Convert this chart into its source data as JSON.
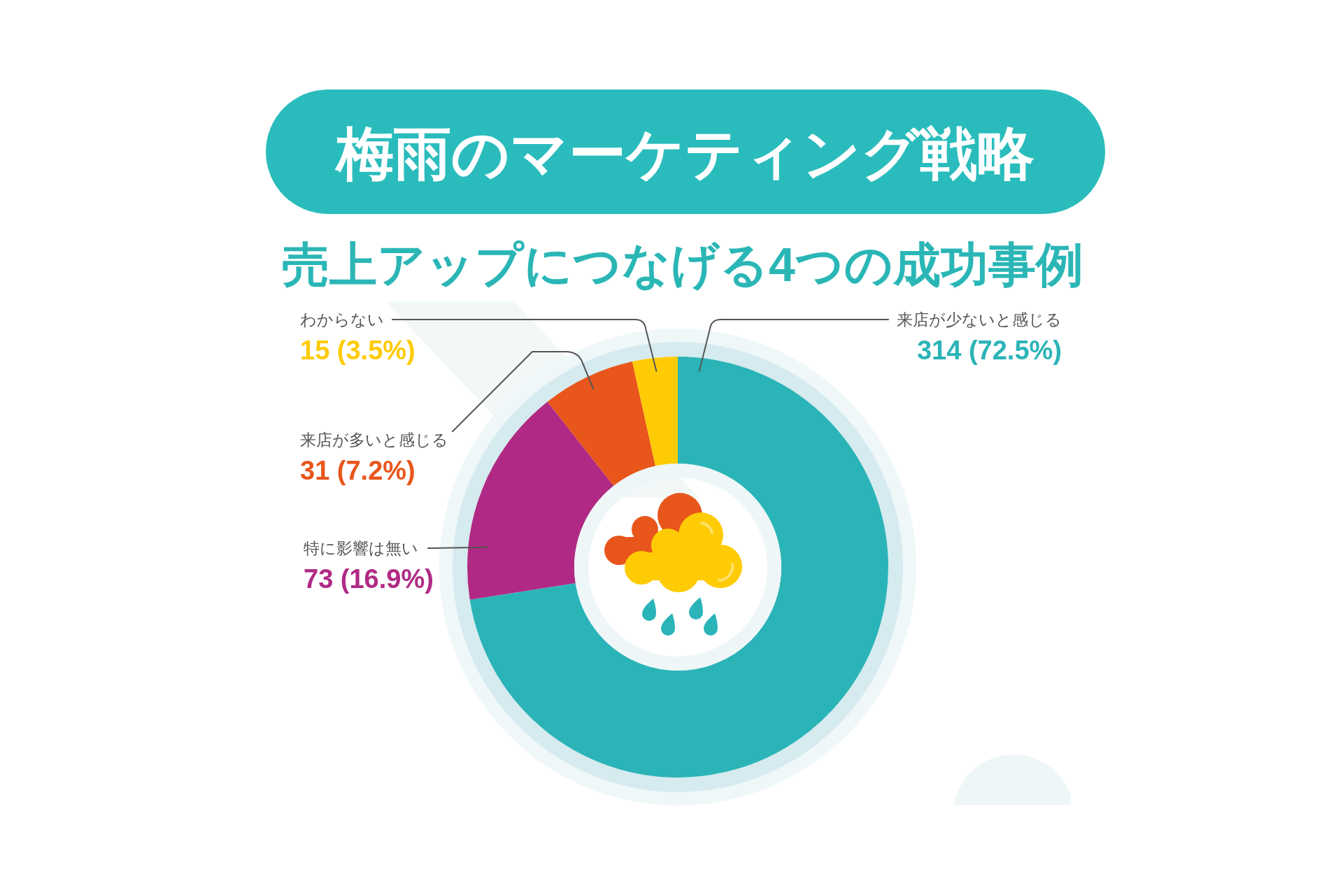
{
  "chart_data": {
    "type": "donut",
    "title": "梅雨のマーケティング戦略",
    "subtitle": "売上アップにつなげる4つの成功事例",
    "categories": [
      "来店が少ないと感じる",
      "特に影響は無い",
      "来店が多いと感じる",
      "わからない"
    ],
    "values": [
      314,
      73,
      31,
      15
    ],
    "colors": [
      "#2bb4b8",
      "#b02a85",
      "#e8561b",
      "#ffcb05"
    ],
    "value_labels": [
      "314 (72.5%)",
      "73 (16.9%)",
      "31 (7.2%)",
      "15 (3.5%)"
    ]
  }
}
